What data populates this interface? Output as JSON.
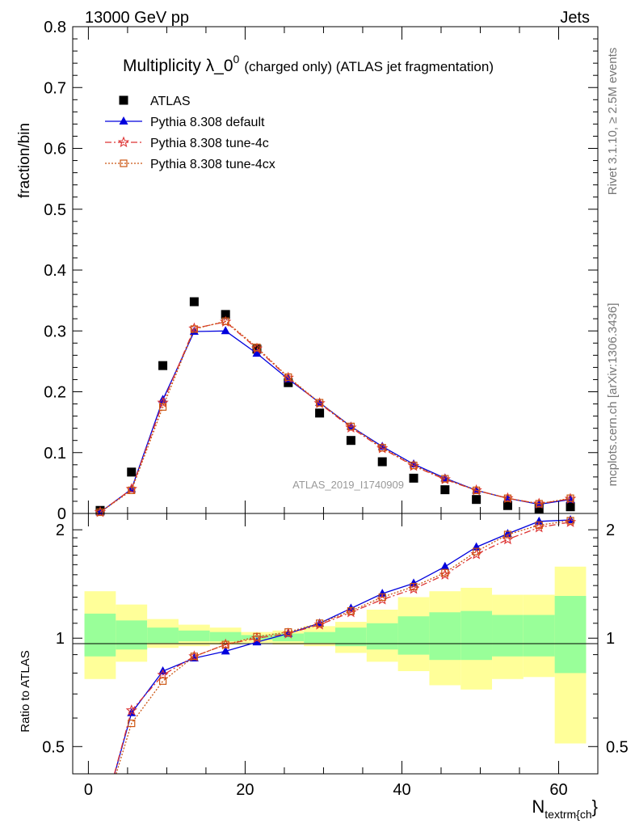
{
  "header": {
    "left": "13000 GeV pp",
    "right": "Jets"
  },
  "side_labels": {
    "rivet": "Rivet 3.1.10, ≥ 2.5M events",
    "mcplots": "mcplots.cern.ch [arXiv:1306.3436]"
  },
  "chart_data": [
    {
      "type": "scatter",
      "title": "Multiplicity λ_0⁰ (charged only) (ATLAS jet fragmentation)",
      "title_main": "Multiplicity λ_0",
      "title_sup": "0",
      "title_rest": "(charged only) (ATLAS jet fragmentation)",
      "ylabel": "fraction/bin",
      "watermark": "ATLAS_2019_I1740909",
      "xlim": [
        -2,
        65
      ],
      "ylim": [
        0,
        0.8
      ],
      "yticks": [
        0,
        0.1,
        0.2,
        0.3,
        0.4,
        0.5,
        0.6,
        0.7,
        0.8
      ],
      "yticklabels": [
        "0",
        "0.1",
        "0.2",
        "0.3",
        "0.4",
        "0.5",
        "0.6",
        "0.7",
        "0.8"
      ],
      "legend_position": "top-left",
      "x": [
        1.5,
        5.5,
        9.5,
        13.5,
        17.5,
        21.5,
        25.5,
        29.5,
        33.5,
        37.5,
        41.5,
        45.5,
        49.5,
        53.5,
        57.5,
        61.5
      ],
      "series": [
        {
          "name": "ATLAS",
          "color": "#000000",
          "marker": "square",
          "values": [
            0.005,
            0.068,
            0.243,
            0.348,
            0.327,
            0.27,
            0.215,
            0.165,
            0.12,
            0.085,
            0.058,
            0.039,
            0.023,
            0.013,
            0.008,
            0.011
          ]
        },
        {
          "name": "Pythia 8.308 default",
          "color": "#0000dd",
          "marker": "triangle",
          "dash": "",
          "values": [
            0.002,
            0.04,
            0.187,
            0.299,
            0.3,
            0.263,
            0.221,
            0.182,
            0.143,
            0.11,
            0.081,
            0.058,
            0.038,
            0.025,
            0.015,
            0.023
          ]
        },
        {
          "name": "Pythia 8.308 tune-4c",
          "color": "#dd3333",
          "marker": "star",
          "dash": "8,3,2,3",
          "values": [
            0.002,
            0.04,
            0.182,
            0.304,
            0.315,
            0.271,
            0.223,
            0.181,
            0.141,
            0.107,
            0.078,
            0.056,
            0.038,
            0.025,
            0.016,
            0.024
          ]
        },
        {
          "name": "Pythia 8.308 tune-4cx",
          "color": "#cc5511",
          "marker": "opensquare",
          "dash": "2,2",
          "values": [
            0.002,
            0.038,
            0.175,
            0.303,
            0.316,
            0.273,
            0.224,
            0.182,
            0.143,
            0.108,
            0.079,
            0.057,
            0.038,
            0.025,
            0.016,
            0.025
          ]
        }
      ]
    },
    {
      "type": "line",
      "ylabel": "Ratio to ATLAS",
      "xlabel": "N",
      "xlabel_sub": "textrm{ch",
      "xlabel_tail": "}",
      "xlim": [
        -2,
        65
      ],
      "ylim": [
        0.42,
        2.22
      ],
      "xticks": [
        0,
        20,
        40,
        60
      ],
      "xticklabels": [
        "0",
        "20",
        "40",
        "60"
      ],
      "yticks": [
        0.5,
        1,
        2
      ],
      "yticklabels": [
        "0.5",
        "1",
        "2"
      ],
      "bin_edges": [
        -0.5,
        3.5,
        7.5,
        11.5,
        15.5,
        19.5,
        23.5,
        27.5,
        31.5,
        35.5,
        39.5,
        43.5,
        47.5,
        51.5,
        55.5,
        59.5,
        63.5
      ],
      "band_outer_lo": [
        0.77,
        0.86,
        0.94,
        0.95,
        0.96,
        0.97,
        0.96,
        0.95,
        0.91,
        0.86,
        0.81,
        0.74,
        0.72,
        0.77,
        0.78,
        0.51
      ],
      "band_outer_hi": [
        1.35,
        1.24,
        1.13,
        1.09,
        1.07,
        1.04,
        1.05,
        1.08,
        1.11,
        1.2,
        1.3,
        1.35,
        1.38,
        1.32,
        1.32,
        1.58
      ],
      "band_inner_lo": [
        0.89,
        0.93,
        0.97,
        0.98,
        0.98,
        0.99,
        0.98,
        0.97,
        0.95,
        0.93,
        0.9,
        0.87,
        0.87,
        0.89,
        0.89,
        0.8
      ],
      "band_inner_hi": [
        1.17,
        1.12,
        1.07,
        1.05,
        1.04,
        1.02,
        1.03,
        1.04,
        1.07,
        1.1,
        1.15,
        1.18,
        1.19,
        1.16,
        1.16,
        1.31
      ],
      "band_colors": {
        "outer": "#ffff99",
        "inner": "#99ff99"
      },
      "x": [
        1.5,
        5.5,
        9.5,
        13.5,
        17.5,
        21.5,
        25.5,
        29.5,
        33.5,
        37.5,
        41.5,
        45.5,
        49.5,
        53.5,
        57.5,
        61.5
      ],
      "series": [
        {
          "name": "Pythia 8.308 default",
          "color": "#0000dd",
          "marker": "triangle",
          "dash": "",
          "values": [
            0.3,
            0.62,
            0.81,
            0.88,
            0.92,
            0.975,
            1.03,
            1.1,
            1.21,
            1.33,
            1.42,
            1.58,
            1.79,
            1.95,
            2.11,
            2.13
          ]
        },
        {
          "name": "Pythia 8.308 tune-4c",
          "color": "#dd3333",
          "marker": "star",
          "dash": "8,3,2,3",
          "values": [
            0.3,
            0.63,
            0.79,
            0.89,
            0.96,
            1.0,
            1.03,
            1.09,
            1.18,
            1.28,
            1.37,
            1.5,
            1.71,
            1.88,
            2.03,
            2.1
          ]
        },
        {
          "name": "Pythia 8.308 tune-4cx",
          "color": "#cc5511",
          "marker": "opensquare",
          "dash": "2,2",
          "values": [
            0.3,
            0.58,
            0.76,
            0.89,
            0.96,
            1.01,
            1.04,
            1.1,
            1.19,
            1.3,
            1.39,
            1.52,
            1.74,
            1.94,
            2.06,
            2.12
          ]
        }
      ]
    }
  ]
}
